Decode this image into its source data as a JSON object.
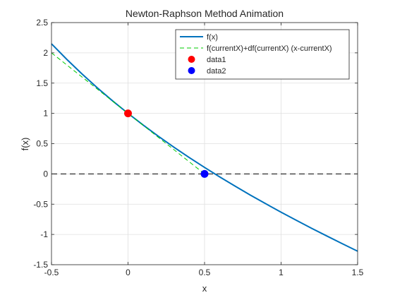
{
  "chart_data": {
    "type": "line",
    "title": "Newton-Raphson Method Animation",
    "xlabel": "x",
    "ylabel": "f(x)",
    "xlim": [
      -0.5,
      1.5
    ],
    "ylim": [
      -1.5,
      2.5
    ],
    "x_ticks": [
      -0.5,
      0,
      0.5,
      1,
      1.5
    ],
    "x_tick_labels": [
      "-0.5",
      "0",
      "0.5",
      "1",
      "1.5"
    ],
    "y_ticks": [
      -1.5,
      -1,
      -0.5,
      0,
      0.5,
      1,
      1.5,
      2,
      2.5
    ],
    "y_tick_labels": [
      "-1.5",
      "-1",
      "-0.5",
      "0",
      "0.5",
      "1",
      "1.5",
      "2",
      "2.5"
    ],
    "grid": true,
    "legend_position": "top-right",
    "series": [
      {
        "name": "f(x)",
        "style": "solid",
        "color": "#0072BD",
        "x": [
          -0.5,
          -0.4,
          -0.3,
          -0.2,
          -0.1,
          0,
          0.1,
          0.2,
          0.3,
          0.4,
          0.5,
          0.6,
          0.7,
          0.8,
          0.9,
          1.0,
          1.1,
          1.2,
          1.3,
          1.4,
          1.5
        ],
        "y": [
          2.149,
          1.892,
          1.65,
          1.421,
          1.205,
          1.0,
          0.805,
          0.619,
          0.441,
          0.27,
          0.107,
          -0.051,
          -0.203,
          -0.351,
          -0.493,
          -0.632,
          -0.767,
          -0.899,
          -1.027,
          -1.153,
          -1.277
        ]
      },
      {
        "name": "f(currentX)+df(currentX) (x-currentX)",
        "style": "dashed",
        "color": "#00CC00",
        "x": [
          -0.5,
          0.5
        ],
        "y": [
          2.0,
          0.0
        ]
      },
      {
        "name": "data1",
        "style": "marker",
        "color": "#FF0000",
        "x": [
          0
        ],
        "y": [
          1
        ]
      },
      {
        "name": "data2",
        "style": "marker",
        "color": "#0000FF",
        "x": [
          0.5
        ],
        "y": [
          0
        ]
      }
    ],
    "reference_line": {
      "y": 0,
      "style": "dashed",
      "color": "#000000"
    }
  }
}
